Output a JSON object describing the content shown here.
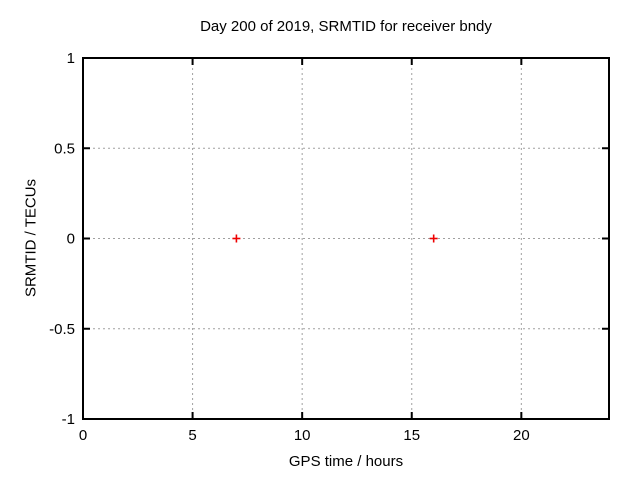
{
  "chart_data": {
    "type": "scatter",
    "title": "Day 200 of 2019, SRMTID for receiver bndy",
    "xlabel": "GPS time / hours",
    "ylabel": "SRMTID / TECUs",
    "xlim": [
      0,
      24
    ],
    "ylim": [
      -1,
      1
    ],
    "xticks": [
      0,
      5,
      10,
      15,
      20
    ],
    "xtick_labels": [
      "0",
      "5",
      "10",
      "15",
      "20"
    ],
    "yticks": [
      -1,
      -0.5,
      0,
      0.5,
      1
    ],
    "ytick_labels": [
      "-1",
      "-0.5",
      "0",
      "0.5",
      "1"
    ],
    "grid": true,
    "legend": "none",
    "series": [
      {
        "name": "SRMTID",
        "marker": "plus",
        "color": "#ee0000",
        "points": [
          {
            "x": 7,
            "y": 0
          },
          {
            "x": 16,
            "y": 0
          }
        ]
      }
    ]
  },
  "colors": {
    "background": "#ffffff",
    "border": "#000000",
    "grid": "#a0a0a0",
    "text": "#000000"
  }
}
